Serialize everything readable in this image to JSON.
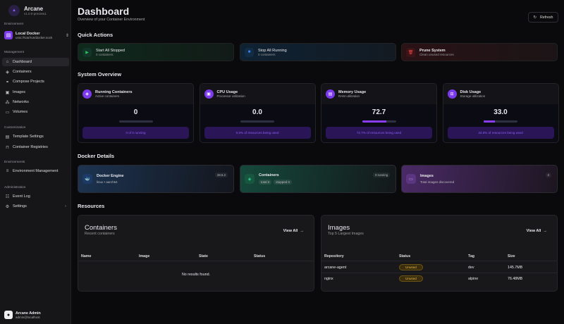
{
  "sidebar": {
    "app_name": "Arcane",
    "version": "v1.0.0-preview1",
    "environment_label": "Environment",
    "environment": {
      "name": "Local Docker",
      "socket": "unix:///var/run/docker.sock"
    },
    "sections": {
      "management": "Management",
      "customization": "Customization",
      "environments": "Environments",
      "administration": "Administration"
    },
    "items": [
      {
        "label": "Dashboard",
        "icon": "dashboard-icon"
      },
      {
        "label": "Containers",
        "icon": "box-icon"
      },
      {
        "label": "Compose Projects",
        "icon": "link-icon"
      },
      {
        "label": "Images",
        "icon": "image-icon"
      },
      {
        "label": "Networks",
        "icon": "network-icon"
      },
      {
        "label": "Volumes",
        "icon": "drive-icon"
      },
      {
        "label": "Template Settings",
        "icon": "template-icon"
      },
      {
        "label": "Container Registries",
        "icon": "lock-icon"
      },
      {
        "label": "Environment Management",
        "icon": "server-icon"
      },
      {
        "label": "Event Log",
        "icon": "log-icon"
      },
      {
        "label": "Settings",
        "icon": "gear-icon"
      }
    ],
    "user": {
      "name": "Arcane Admin",
      "email": "admin@localhost"
    }
  },
  "header": {
    "title": "Dashboard",
    "subtitle": "Overview of your Container Environment",
    "refresh_label": "Refresh"
  },
  "quick_actions": {
    "title": "Quick Actions",
    "items": [
      {
        "label": "Start All Stopped",
        "sub": "0 containers",
        "color": "#22c55e"
      },
      {
        "label": "Stop All Running",
        "sub": "0 containers",
        "color": "#3b82f6"
      },
      {
        "label": "Prune System",
        "sub": "Clean unused resources",
        "color": "#ef4444"
      }
    ]
  },
  "overview": {
    "title": "System Overview",
    "cards": [
      {
        "title": "Running Containers",
        "sub": "Active containers",
        "value": "0",
        "percent": 0,
        "note": "0 of 0 running"
      },
      {
        "title": "CPU Usage",
        "sub": "Processor utilization",
        "value": "0.0",
        "percent": 0,
        "note": "0.0% of resources being used"
      },
      {
        "title": "Memory Usage",
        "sub": "RAM utilization",
        "value": "72.7",
        "percent": 72.7,
        "note": "72.7% of resources being used"
      },
      {
        "title": "Disk Usage",
        "sub": "Storage utilization",
        "value": "33.0",
        "percent": 33.0,
        "note": "33.0% of resources being used"
      }
    ]
  },
  "docker_details": {
    "title": "Docker Details",
    "engine": {
      "title": "Docker Engine",
      "sub": "linux • aarch64",
      "badge": "28.5.2"
    },
    "containers": {
      "title": "Containers",
      "badge": "0 running",
      "total": "total 0",
      "stopped": "stopped 0"
    },
    "images": {
      "title": "Images",
      "sub": "Total images discovered",
      "badge": "2"
    }
  },
  "resources": {
    "title": "Resources",
    "containers": {
      "title": "Containers",
      "sub": "Recent containers",
      "view_all": "View All",
      "columns": [
        "Name",
        "Image",
        "State",
        "Status"
      ],
      "empty": "No results found."
    },
    "images": {
      "title": "Images",
      "sub": "Top 5 Largest Images",
      "view_all": "View All",
      "columns": [
        "Repository",
        "Status",
        "Tag",
        "Size"
      ],
      "rows": [
        {
          "repo": "arcane-agent",
          "status": "Unused",
          "tag": "dev",
          "size": "145.7MB"
        },
        {
          "repo": "nginx",
          "status": "Unused",
          "tag": "alpine",
          "size": "76.48MB"
        }
      ]
    }
  }
}
